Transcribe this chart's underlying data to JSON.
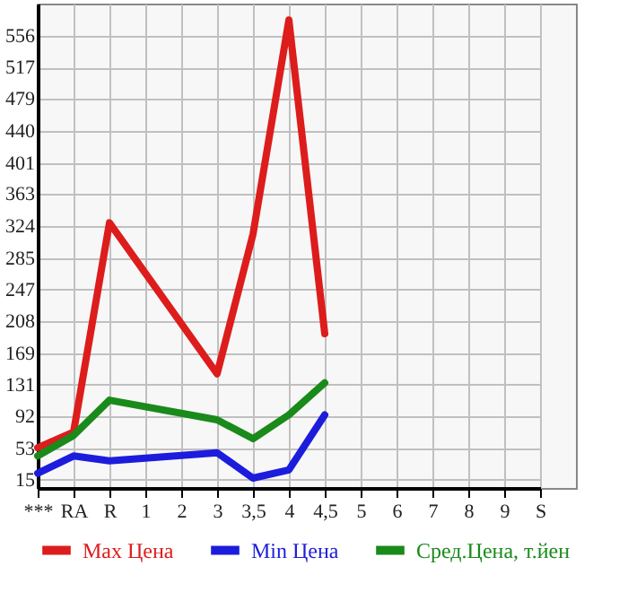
{
  "chart_data": {
    "type": "line",
    "categories": [
      "***",
      "RA",
      "R",
      "1",
      "2",
      "3",
      "3,5",
      "4",
      "4,5",
      "5",
      "6",
      "7",
      "8",
      "9",
      "S"
    ],
    "series": [
      {
        "name": "Max Цена",
        "color": "#dd1c1c",
        "values": [
          54,
          73,
          328,
          null,
          null,
          144,
          314,
          575,
          193,
          null,
          null,
          null,
          null,
          null,
          null
        ]
      },
      {
        "name": "Min Цена",
        "color": "#1c1cdd",
        "values": [
          23,
          44,
          38,
          null,
          null,
          48,
          17,
          27,
          94,
          null,
          null,
          null,
          null,
          null,
          null
        ]
      },
      {
        "name": "Сред.Цена, т.йен",
        "color": "#1a8a1a",
        "values": [
          44,
          69,
          112,
          null,
          null,
          88,
          65,
          94,
          133,
          null,
          null,
          null,
          null,
          null,
          null
        ]
      }
    ],
    "ylim": [
      5,
      595
    ],
    "yticks": [
      15,
      53,
      92,
      131,
      169,
      208,
      247,
      285,
      324,
      363,
      401,
      440,
      479,
      517,
      556
    ],
    "grid": true,
    "legend": "bottom",
    "marker": "none",
    "line_style": "solid"
  }
}
